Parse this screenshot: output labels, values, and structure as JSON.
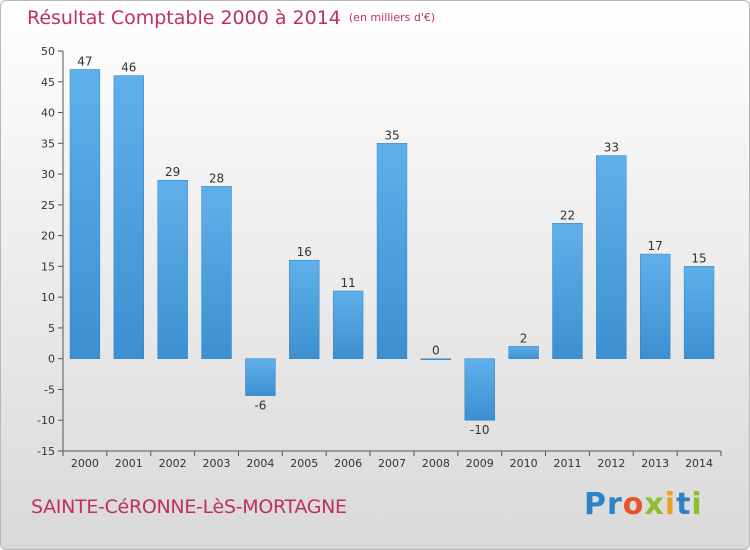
{
  "chart_data": {
    "type": "bar",
    "title": "Résultat Comptable 2000 à 2014",
    "unit_note": "(en milliers d'€)",
    "xlabel": "",
    "ylabel": "",
    "categories": [
      "2000",
      "2001",
      "2002",
      "2003",
      "2004",
      "2005",
      "2006",
      "2007",
      "2008",
      "2009",
      "2010",
      "2011",
      "2012",
      "2013",
      "2014"
    ],
    "values": [
      47,
      46,
      29,
      28,
      -6,
      16,
      11,
      35,
      0,
      -10,
      2,
      22,
      33,
      17,
      15
    ],
    "ylim": [
      -15,
      50
    ],
    "yticks": [
      -15,
      -10,
      -5,
      0,
      5,
      10,
      15,
      20,
      25,
      30,
      35,
      40,
      45,
      50
    ],
    "grid": false,
    "legend": "none",
    "bar_color": "#3d8fd0",
    "bar_color_light": "#5fb0ea"
  },
  "footer": {
    "town": "SAINTE-CéRONNE-LèS-MORTAGNE",
    "logo_parts": [
      "Pr",
      "o",
      "x",
      "i",
      "t",
      "i"
    ]
  }
}
